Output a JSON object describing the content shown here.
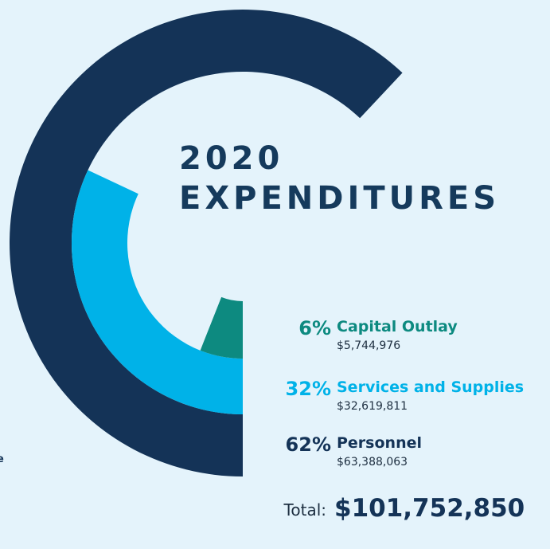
{
  "chart_data": {
    "type": "radial",
    "title": [
      "2020",
      "EXPENDITURES"
    ],
    "categories": [
      "Capital Outlay",
      "Services and Supplies",
      "Personnel"
    ],
    "values": [
      6,
      32,
      62
    ],
    "value_labels": [
      "6%",
      "32%",
      "62%"
    ],
    "amounts": [
      "$5,744,976",
      "$32,619,811",
      "$63,388,063"
    ],
    "colors": [
      "#0d8a80",
      "#00b2e8",
      "#143357"
    ],
    "total_label": "Total:",
    "total": "$101,752,850",
    "edge_fragment": "e"
  }
}
